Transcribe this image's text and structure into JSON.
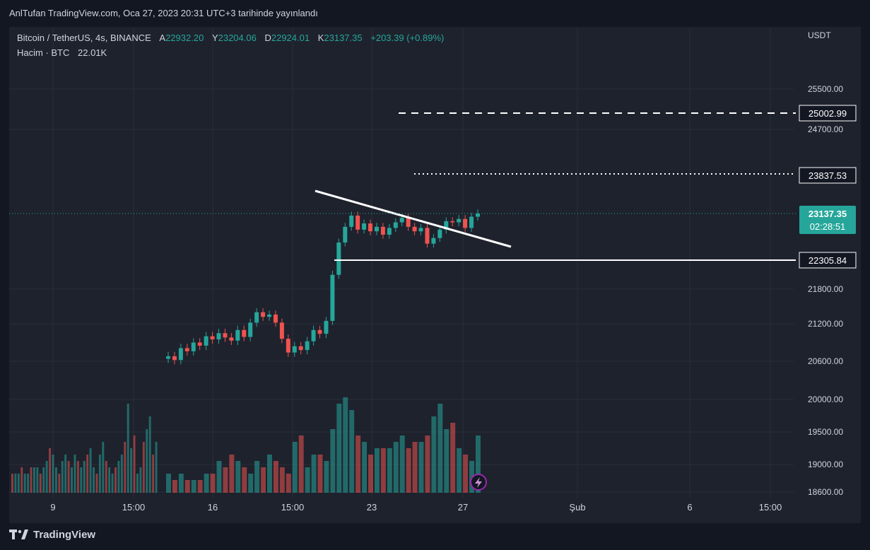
{
  "header": {
    "published": "AnlTufan TradingView.com, Oca 27, 2023 20:31 UTC+3 tarihinde yayınlandı"
  },
  "legend": {
    "symbol": "Bitcoin / TetherUS, 4s, BINANCE",
    "open_label": "A",
    "open": "22932.20",
    "high_label": "Y",
    "high": "23204.06",
    "low_label": "D",
    "low": "22924.01",
    "close_label": "K",
    "close": "23137.35",
    "change": "+203.39 (+0.89%)",
    "volume_label": "Hacim · BTC",
    "volume": "22.01K"
  },
  "currency": "USDT",
  "footer": {
    "brand": "TradingView"
  },
  "colors": {
    "up": "#26a69a",
    "down": "#ef5350",
    "background": "#1e222d",
    "drawing": "#ffffff"
  },
  "chart_data": {
    "type": "candlestick",
    "yticks": [
      "25500.00",
      "24700.00",
      "21800.00",
      "21200.00",
      "20600.00",
      "20000.00",
      "19500.00",
      "19000.00",
      "18600.00"
    ],
    "xticks": [
      "9",
      "15:00",
      "16",
      "15:00",
      "23",
      "27",
      "Şub",
      "6",
      "15:00"
    ],
    "price_labels": [
      {
        "text": "25002.99",
        "style": "dashed"
      },
      {
        "text": "23837.53",
        "style": "dotted"
      },
      {
        "text": "22305.84",
        "style": "solid"
      }
    ],
    "last_price": {
      "price": "23137.35",
      "countdown": "02:28:51"
    },
    "candle_closes": [
      20680,
      20620,
      20810,
      20760,
      20900,
      20850,
      21000,
      20950,
      21050,
      20980,
      20930,
      21100,
      20990,
      21220,
      21400,
      21320,
      21360,
      21220,
      20960,
      20740,
      20840,
      20780,
      20920,
      21100,
      21040,
      21250,
      22050,
      22620,
      22900,
      23100,
      22850,
      22960,
      22820,
      22900,
      22760,
      22880,
      22980,
      23060,
      22900,
      22820,
      22880,
      22600,
      22700,
      22850,
      23000,
      22980,
      23040,
      22880,
      23080,
      23137.35
    ],
    "volumes": [
      3,
      2,
      3,
      2,
      2,
      2,
      3,
      3,
      5,
      4,
      6,
      5,
      4,
      3,
      5,
      4,
      6,
      5,
      4,
      3,
      8,
      9,
      4,
      6,
      6,
      5,
      10,
      14,
      15,
      13,
      9,
      8,
      6,
      7,
      7,
      7,
      8,
      9,
      7,
      8,
      8,
      9,
      12,
      14,
      10,
      11,
      7,
      6,
      5,
      9
    ]
  }
}
